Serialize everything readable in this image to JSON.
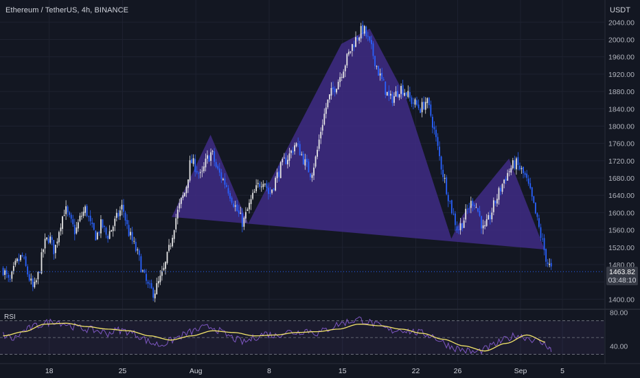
{
  "header": {
    "title": "Ethereum / TetherUS, 4h, BINANCE",
    "currency": "USDT"
  },
  "last_price": {
    "value": "1463.82",
    "countdown": "03:48:10"
  },
  "rsi_panel": {
    "label": "RSI",
    "ticks": [
      "80.00",
      "40.00"
    ]
  },
  "colors": {
    "background": "#131722",
    "grid": "#1e2230",
    "up": "#e6e6e6",
    "down": "#2962ff",
    "pattern_fill": "#3f2c85",
    "rsi_line": "#7e57c2",
    "rsi_ma": "#f5e66b"
  },
  "chart_data": [
    {
      "type": "candlestick",
      "title": "Ethereum / TetherUS, 4h, BINANCE",
      "ylabel": "USDT",
      "ylim": [
        1380,
        2050
      ],
      "y_ticks": [
        1400,
        1440,
        1480,
        1520,
        1560,
        1600,
        1640,
        1680,
        1720,
        1760,
        1800,
        1840,
        1880,
        1920,
        1960,
        2000,
        2040
      ],
      "y_tick_labels": [
        "1400.00",
        "1440.00",
        "1480.00",
        "1520.00",
        "1560.00",
        "1600.00",
        "1640.00",
        "1680.00",
        "1720.00",
        "1760.00",
        "1800.00",
        "1840.00",
        "1880.00",
        "1920.00",
        "1960.00",
        "2000.00",
        "2040.00"
      ],
      "x_ticks": [
        {
          "label": "18",
          "day": 18
        },
        {
          "label": "25",
          "day": 25
        },
        {
          "label": "Aug",
          "day": 32
        },
        {
          "label": "8",
          "day": 39
        },
        {
          "label": "15",
          "day": 46
        },
        {
          "label": "22",
          "day": 53
        },
        {
          "label": "26",
          "day": 57
        },
        {
          "label": "Sep",
          "day": 63
        },
        {
          "label": "5",
          "day": 67
        }
      ],
      "x_range_days": [
        13.3,
        71
      ],
      "series": [
        {
          "kind": "close_path",
          "points": [
            [
              13.6,
              1470
            ],
            [
              14.2,
              1435
            ],
            [
              14.8,
              1480
            ],
            [
              15.4,
              1500
            ],
            [
              16.0,
              1455
            ],
            [
              16.5,
              1420
            ],
            [
              17.0,
              1460
            ],
            [
              17.5,
              1525
            ],
            [
              18.0,
              1545
            ],
            [
              18.5,
              1510
            ],
            [
              19.0,
              1570
            ],
            [
              19.5,
              1610
            ],
            [
              20.0,
              1580
            ],
            [
              20.5,
              1555
            ],
            [
              21.0,
              1590
            ],
            [
              21.5,
              1610
            ],
            [
              22.0,
              1565
            ],
            [
              22.5,
              1545
            ],
            [
              23.0,
              1575
            ],
            [
              23.5,
              1545
            ],
            [
              24.0,
              1565
            ],
            [
              24.5,
              1590
            ],
            [
              25.0,
              1615
            ],
            [
              25.5,
              1560
            ],
            [
              26.0,
              1530
            ],
            [
              26.5,
              1500
            ],
            [
              27.0,
              1455
            ],
            [
              27.5,
              1425
            ],
            [
              28.0,
              1415
            ],
            [
              28.5,
              1440
            ],
            [
              29.0,
              1470
            ],
            [
              29.5,
              1520
            ],
            [
              30.0,
              1580
            ],
            [
              30.5,
              1620
            ],
            [
              31.0,
              1650
            ],
            [
              31.5,
              1720
            ],
            [
              32.0,
              1705
            ],
            [
              32.5,
              1680
            ],
            [
              33.0,
              1720
            ],
            [
              33.5,
              1740
            ],
            [
              34.0,
              1700
            ],
            [
              34.5,
              1680
            ],
            [
              35.0,
              1660
            ],
            [
              35.5,
              1630
            ],
            [
              36.0,
              1600
            ],
            [
              36.5,
              1575
            ],
            [
              37.0,
              1610
            ],
            [
              37.5,
              1640
            ],
            [
              38.0,
              1665
            ],
            [
              38.5,
              1680
            ],
            [
              39.0,
              1640
            ],
            [
              39.5,
              1670
            ],
            [
              40.0,
              1700
            ],
            [
              40.5,
              1720
            ],
            [
              41.0,
              1735
            ],
            [
              41.5,
              1760
            ],
            [
              42.0,
              1740
            ],
            [
              42.5,
              1710
            ],
            [
              43.0,
              1690
            ],
            [
              43.5,
              1730
            ],
            [
              44.0,
              1800
            ],
            [
              44.5,
              1850
            ],
            [
              45.0,
              1880
            ],
            [
              45.5,
              1900
            ],
            [
              46.0,
              1930
            ],
            [
              46.5,
              1960
            ],
            [
              47.0,
              1990
            ],
            [
              47.5,
              2010
            ],
            [
              48.0,
              2025
            ],
            [
              48.5,
              1995
            ],
            [
              49.0,
              1960
            ],
            [
              49.5,
              1920
            ],
            [
              50.0,
              1890
            ],
            [
              50.5,
              1860
            ],
            [
              51.0,
              1870
            ],
            [
              51.5,
              1890
            ],
            [
              52.0,
              1880
            ],
            [
              52.5,
              1860
            ],
            [
              53.0,
              1850
            ],
            [
              53.5,
              1840
            ],
            [
              54.0,
              1860
            ],
            [
              54.5,
              1820
            ],
            [
              55.0,
              1760
            ],
            [
              55.5,
              1700
            ],
            [
              56.0,
              1650
            ],
            [
              56.5,
              1600
            ],
            [
              57.0,
              1560
            ],
            [
              57.5,
              1580
            ],
            [
              58.0,
              1610
            ],
            [
              58.5,
              1630
            ],
            [
              59.0,
              1600
            ],
            [
              59.5,
              1555
            ],
            [
              60.0,
              1585
            ],
            [
              60.5,
              1620
            ],
            [
              61.0,
              1650
            ],
            [
              61.5,
              1680
            ],
            [
              62.0,
              1700
            ],
            [
              62.5,
              1715
            ],
            [
              63.0,
              1700
            ],
            [
              63.5,
              1680
            ],
            [
              64.0,
              1640
            ],
            [
              64.5,
              1590
            ],
            [
              65.0,
              1540
            ],
            [
              65.5,
              1490
            ],
            [
              66.0,
              1464
            ]
          ]
        },
        {
          "kind": "head_and_shoulders_pattern",
          "points": [
            [
              29.7,
              1590
            ],
            [
              33.4,
              1780
            ],
            [
              37.0,
              1575
            ],
            [
              45.9,
              1990
            ],
            [
              48.6,
              2025
            ],
            [
              52.0,
              1870
            ],
            [
              56.4,
              1540
            ],
            [
              57.5,
              1595
            ],
            [
              61.9,
              1725
            ],
            [
              65.3,
              1515
            ]
          ]
        }
      ]
    },
    {
      "type": "line",
      "title": "RSI",
      "ylim": [
        28,
        82
      ],
      "y_ticks": [
        80,
        40
      ],
      "series": [
        {
          "name": "RSI",
          "x": [
            13.6,
            14.6,
            15.6,
            16.6,
            17.6,
            18.6,
            19.6,
            20.6,
            21.6,
            22.6,
            23.6,
            24.6,
            25.6,
            26.6,
            27.6,
            28.6,
            29.6,
            30.6,
            31.6,
            32.6,
            33.6,
            34.6,
            35.6,
            36.6,
            37.6,
            38.6,
            39.6,
            40.6,
            41.6,
            42.6,
            43.6,
            44.6,
            45.6,
            46.6,
            47.6,
            48.6,
            49.6,
            50.6,
            51.6,
            52.6,
            53.6,
            54.6,
            55.6,
            56.6,
            57.6,
            58.6,
            59.6,
            60.6,
            61.6,
            62.6,
            63.6,
            64.6,
            65.6,
            66.0
          ],
          "values": [
            53,
            48,
            58,
            63,
            67,
            70,
            66,
            62,
            60,
            58,
            55,
            59,
            57,
            52,
            44,
            41,
            46,
            52,
            57,
            61,
            63,
            55,
            49,
            44,
            50,
            55,
            52,
            57,
            56,
            59,
            55,
            60,
            66,
            69,
            72,
            68,
            63,
            58,
            60,
            57,
            55,
            52,
            44,
            38,
            35,
            32,
            36,
            42,
            48,
            53,
            50,
            46,
            40,
            33
          ]
        },
        {
          "name": "RSI-based MA",
          "x": [
            13.6,
            15.6,
            17.6,
            19.6,
            21.6,
            23.6,
            25.6,
            27.6,
            29.6,
            31.6,
            33.6,
            35.6,
            37.6,
            39.6,
            41.6,
            43.6,
            45.6,
            47.6,
            49.6,
            51.6,
            53.6,
            55.6,
            57.6,
            59.6,
            61.6,
            63.6,
            65.6
          ],
          "values": [
            52,
            57,
            66,
            67,
            63,
            60,
            58,
            52,
            47,
            52,
            58,
            56,
            52,
            53,
            56,
            57,
            60,
            66,
            64,
            60,
            55,
            48,
            40,
            34,
            43,
            53,
            44
          ]
        }
      ]
    }
  ]
}
